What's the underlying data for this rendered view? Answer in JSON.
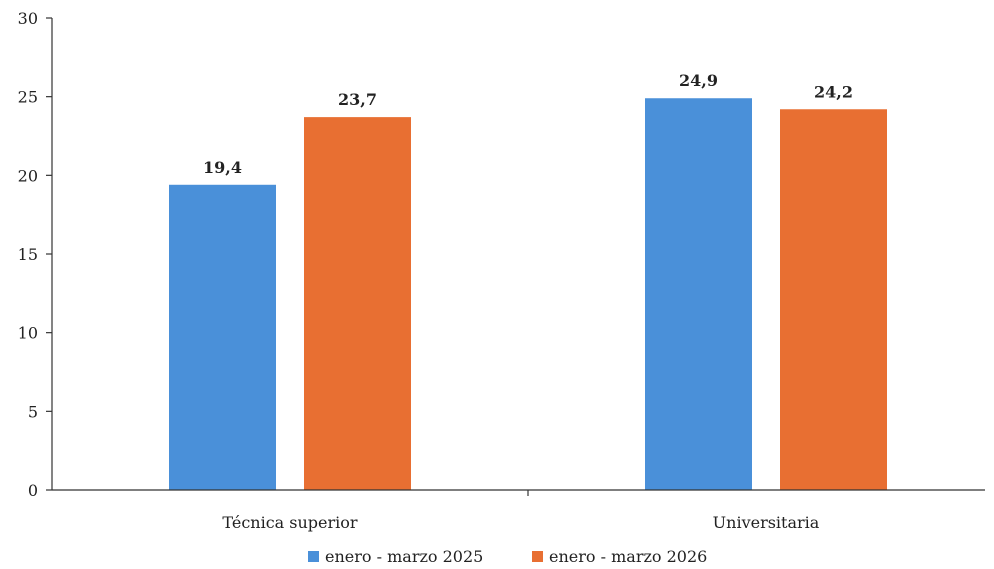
{
  "chart_data": {
    "type": "bar",
    "categories": [
      "Técnica superior",
      "Universitaria"
    ],
    "series": [
      {
        "name": "enero - marzo 2025",
        "values": [
          19.4,
          24.9
        ],
        "labels": [
          "19,4",
          "24,9"
        ],
        "color": "#4a90d9"
      },
      {
        "name": "enero - marzo 2026",
        "values": [
          23.7,
          24.2
        ],
        "labels": [
          "23,7",
          "24,2"
        ],
        "color": "#e86f32"
      }
    ],
    "ylim": [
      0,
      30
    ],
    "yticks": [
      0,
      5,
      10,
      15,
      20,
      25,
      30
    ],
    "grid": false,
    "legend_position": "bottom"
  }
}
